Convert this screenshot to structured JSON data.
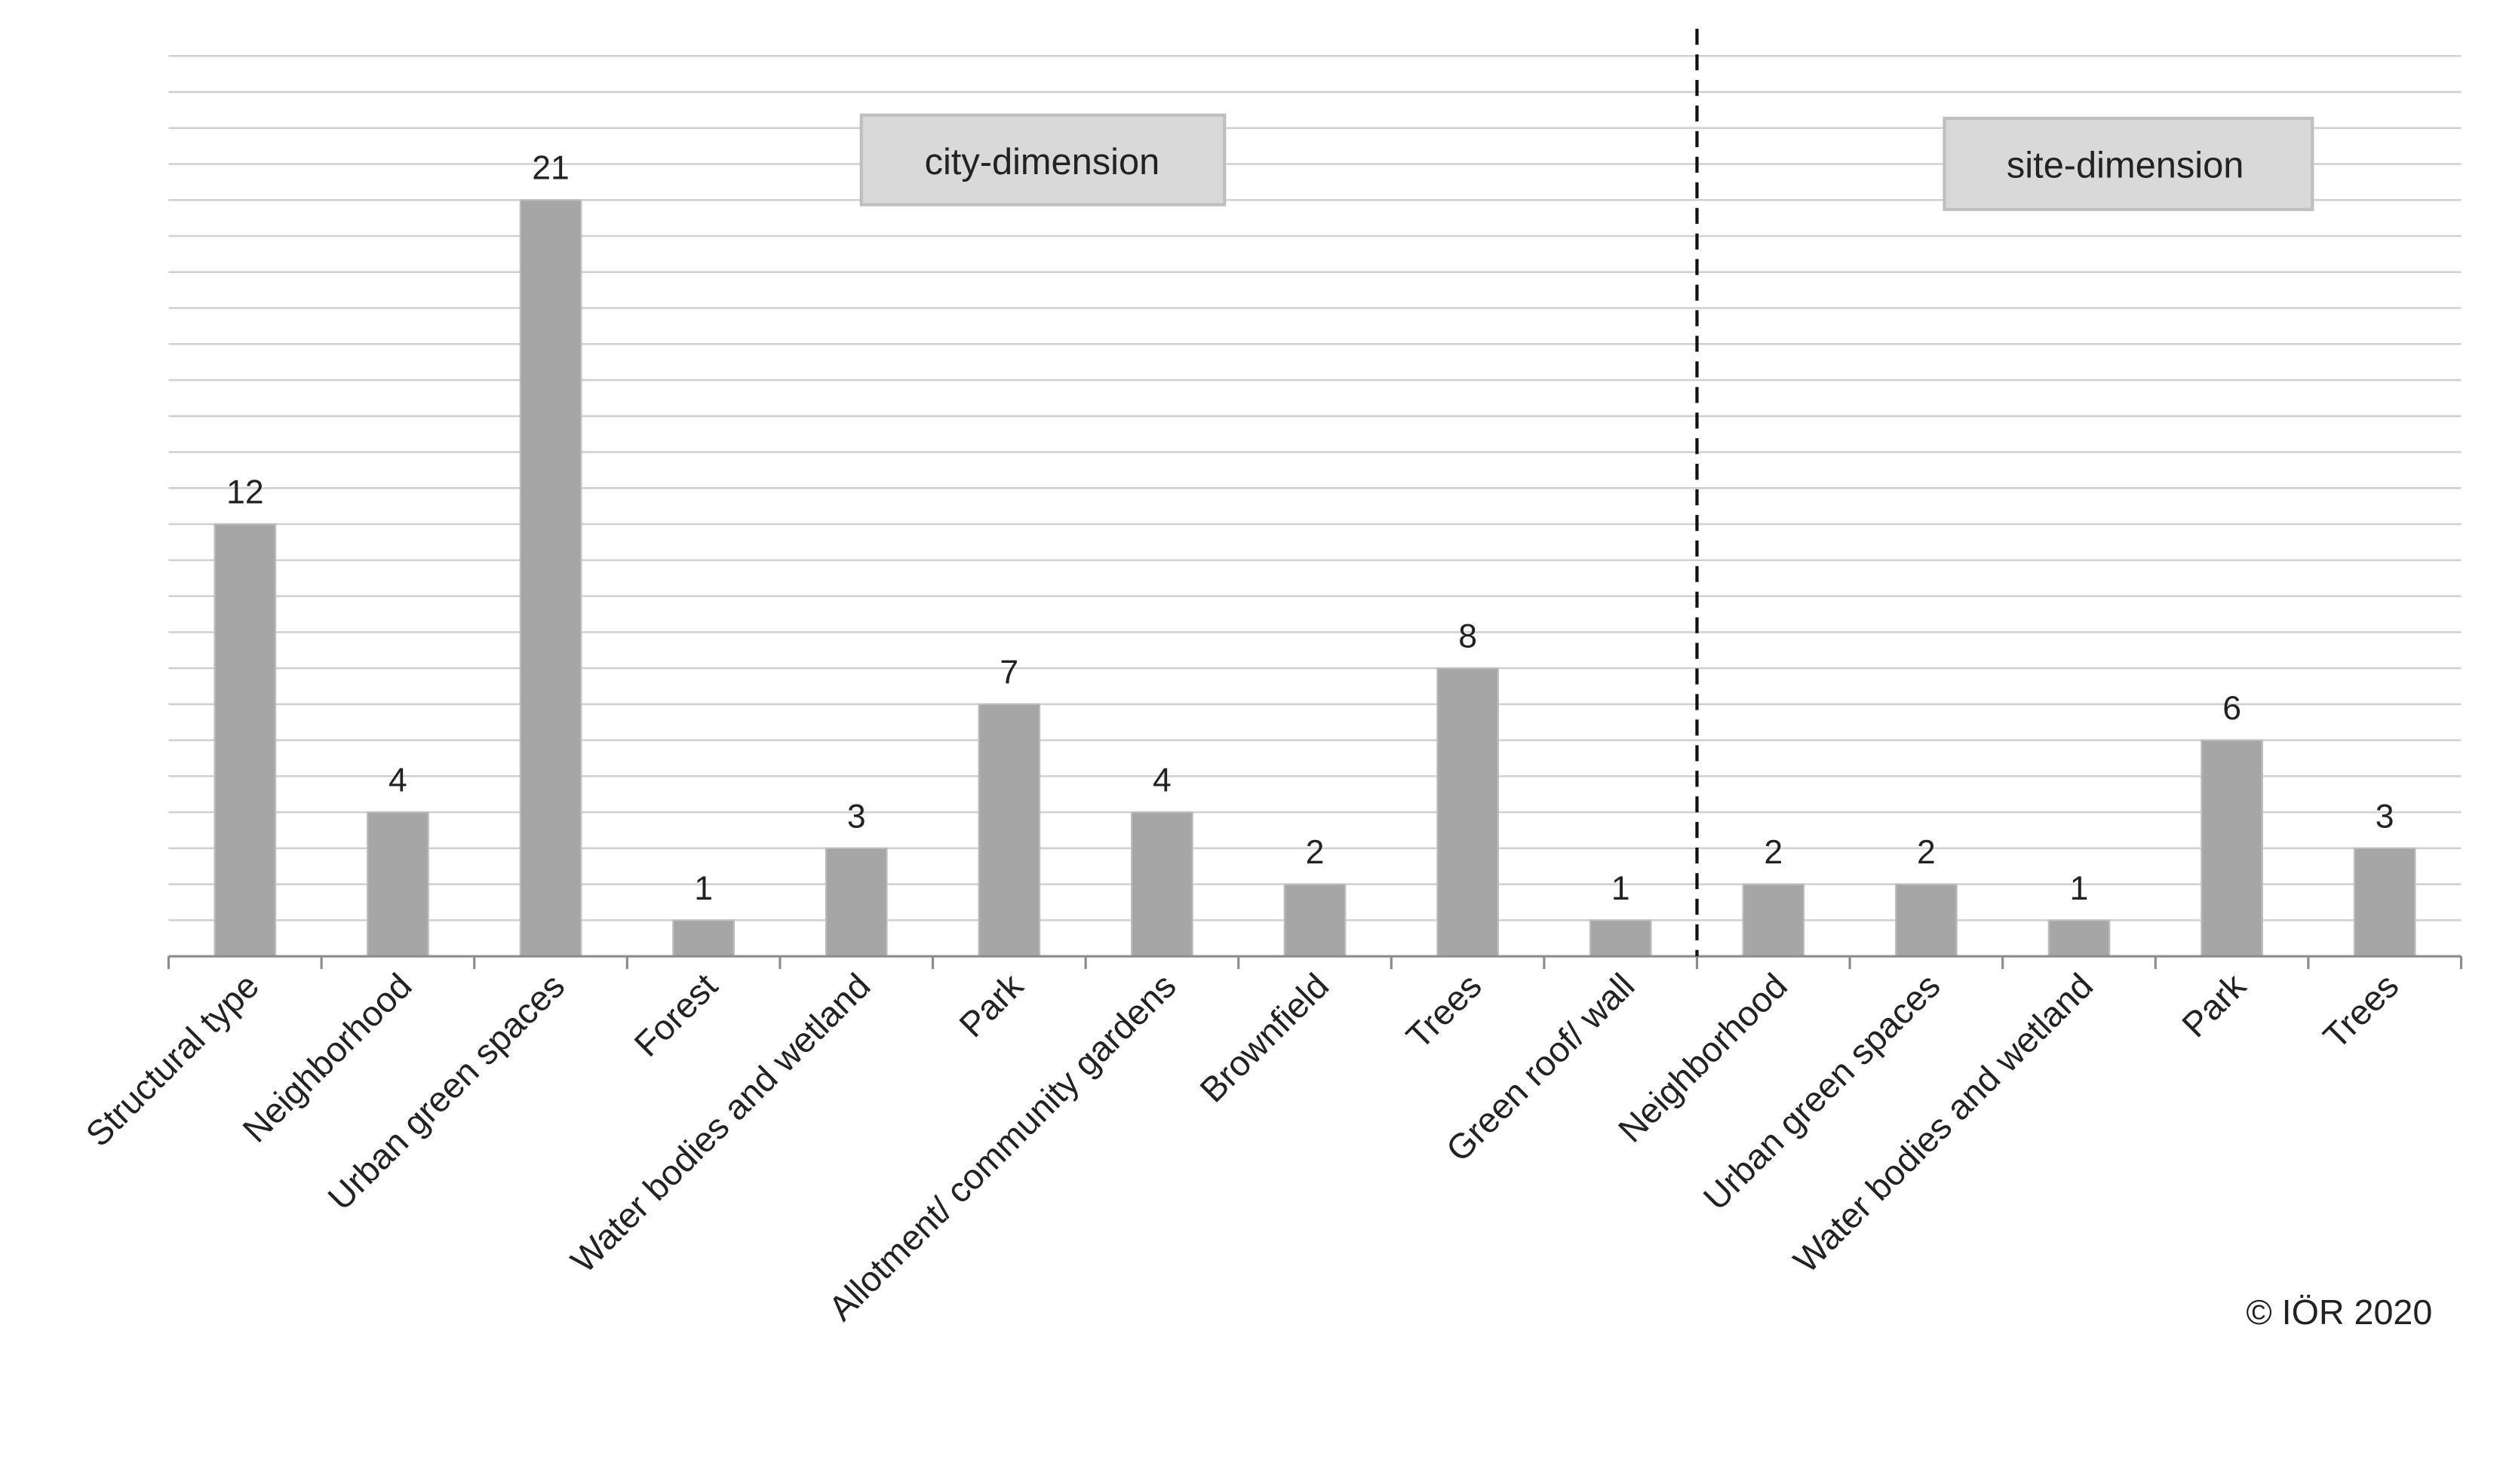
{
  "chart_data": {
    "type": "bar",
    "categories": [
      "Structural type",
      "Neighborhood",
      "Urban green spaces",
      "Forest",
      "Water bodies and wetland",
      "Park",
      "Allotment/ community gardens",
      "Brownfield",
      "Trees",
      "Green roof/ wall",
      "Neighborhood",
      "Urban green spaces",
      "Water bodies and wetland",
      "Park",
      "Trees"
    ],
    "values": [
      12,
      4,
      21,
      1,
      3,
      7,
      4,
      2,
      8,
      1,
      2,
      2,
      1,
      6,
      3
    ],
    "groups": [
      {
        "label": "city-dimension",
        "count": 10
      },
      {
        "label": "site-dimension",
        "count": 5
      }
    ],
    "title": "",
    "xlabel": "",
    "ylabel": "",
    "ylim": [
      0,
      25
    ],
    "grid": true,
    "data_labels": true,
    "group_separator": "dashed",
    "colors": {
      "bar": "#a6a6a6",
      "grid": "#d0d0d0",
      "axis": "#8c8c8c",
      "box_fill": "#d9d9d9",
      "box_stroke": "#bfbfbf"
    }
  },
  "copyright": "© IÖR 2020"
}
